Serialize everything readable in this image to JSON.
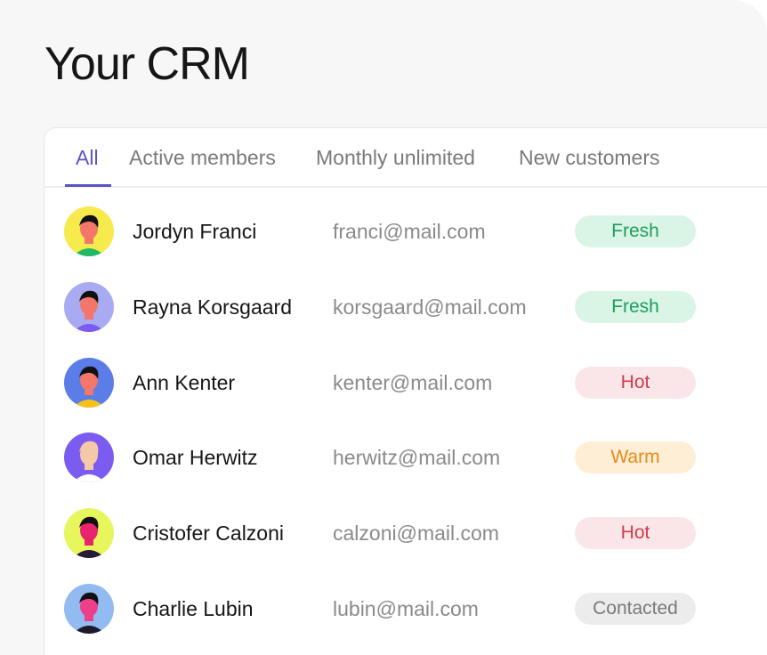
{
  "title": "Your CRM",
  "tabs": [
    {
      "label": "All",
      "active": true
    },
    {
      "label": "Active members"
    },
    {
      "label": "Monthly unlimited"
    },
    {
      "label": "New customers"
    }
  ],
  "accent": "#5a54c8",
  "status_colors": {
    "Fresh": {
      "bg": "#daf4e6",
      "fg": "#1f9e5e"
    },
    "Hot": {
      "bg": "#fae6e8",
      "fg": "#d33a48"
    },
    "Warm": {
      "bg": "#feeed6",
      "fg": "#e88a1a"
    },
    "Contacted": {
      "bg": "#ececec",
      "fg": "#7a7a7a"
    }
  },
  "contacts": [
    {
      "name": "Jordyn Franci",
      "email": "franci@mail.com",
      "status": "Fresh",
      "avatar_bg": "#f6ea4c"
    },
    {
      "name": "Rayna Korsgaard",
      "email": "korsgaard@mail.com",
      "status": "Fresh",
      "avatar_bg": "#a9abf2"
    },
    {
      "name": "Ann Kenter",
      "email": "kenter@mail.com",
      "status": "Hot",
      "avatar_bg": "#5b7de8"
    },
    {
      "name": "Omar Herwitz",
      "email": "herwitz@mail.com",
      "status": "Warm",
      "avatar_bg": "#7c5cf0"
    },
    {
      "name": "Cristofer Calzoni",
      "email": "calzoni@mail.com",
      "status": "Hot",
      "avatar_bg": "#e7f65c"
    },
    {
      "name": "Charlie Lubin",
      "email": "lubin@mail.com",
      "status": "Contacted",
      "avatar_bg": "#92bbf2"
    }
  ]
}
